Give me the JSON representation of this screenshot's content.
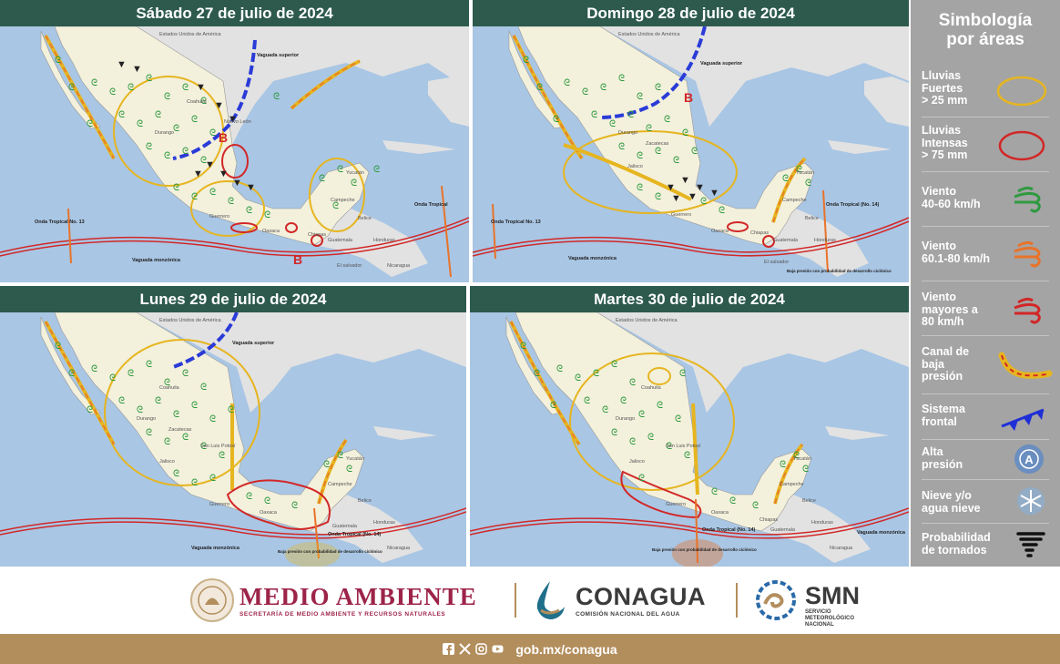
{
  "panels": [
    {
      "title": "Sábado 27 de julio de 2024",
      "labels": {
        "usa": "Estados Unidos de América",
        "vaguada_sup": "Vaguada superior",
        "coahuila": "Coahuila",
        "durango": "Durango",
        "nuevo_leon": "Nuevo León",
        "guerrero": "Guerrero",
        "oaxaca": "Oaxaca",
        "chiapas": "Chiapas",
        "yucatan": "Yucatán",
        "campeche": "Campeche",
        "belice": "Belice",
        "guatemala": "Guatemala",
        "honduras": "Honduras",
        "el_salvador": "El salvador",
        "nicaragua": "Nicaragua",
        "onda13": "Onda Tropical No. 13",
        "onda_trop": "Onda Tropical",
        "vaguada_mon": "Vaguada monzónica",
        "b1": "B",
        "b2": "B"
      }
    },
    {
      "title": "Domingo 28 de julio de 2024",
      "labels": {
        "usa": "Estados Unidos de América",
        "vaguada_sup": "Vaguada superior",
        "durango": "Durango",
        "zacatecas": "Zacatecas",
        "jalisco": "Jalisco",
        "guerrero": "Guerrero",
        "oaxaca": "Oaxaca",
        "chiapas": "Chiapas",
        "yucatan": "Yucatán",
        "campeche": "Campeche",
        "belice": "Belice",
        "guatemala": "Guatemala",
        "honduras": "Honduras",
        "el_salvador": "El salvador",
        "onda13": "Onda Tropical No. 13",
        "onda14": "Onda Tropical (No. 14)",
        "vaguada_mon": "Vaguada monzónica",
        "baja": "Baja presión con probabilidad de desarrollo ciclónico",
        "b1": "B"
      }
    },
    {
      "title": "Lunes 29 de julio de 2024",
      "labels": {
        "usa": "Estados Unidos de América",
        "vaguada_sup": "Vaguada superior",
        "coahuila": "Coahuila",
        "durango": "Durango",
        "zacatecas": "Zacatecas",
        "slp": "San Luis Potosí",
        "jalisco": "Jalisco",
        "guerrero": "Guerrero",
        "oaxaca": "Oaxaca",
        "yucatan": "Yucatán",
        "campeche": "Campeche",
        "belice": "Belice",
        "guatemala": "Guatemala",
        "honduras": "Honduras",
        "nicaragua": "Nicaragua",
        "onda14": "Onda Tropical (No. 14)",
        "vaguada_mon": "Vaguada monzónica",
        "baja": "Baja presión con probabilidad de desarrollo ciclónico"
      }
    },
    {
      "title": "Martes 30 de julio de 2024",
      "labels": {
        "usa": "Estados Unidos de América",
        "coahuila": "Coahuila",
        "durango": "Durango",
        "slp": "San Luis Potosí",
        "jalisco": "Jalisco",
        "guerrero": "Guerrero",
        "oaxaca": "Oaxaca",
        "chiapas": "Chiapas",
        "yucatan": "Yucatán",
        "campeche": "Campeche",
        "belice": "Belice",
        "guatemala": "Guatemala",
        "honduras": "Honduras",
        "nicaragua": "Nicaragua",
        "onda14": "Onda Tropical (No. 14)",
        "vaguada_mon": "Vaguada monzónica",
        "baja": "Baja presión con probabilidad de desarrollo ciclónico"
      }
    }
  ],
  "legend": {
    "title_line1": "Simbología",
    "title_line2": "por áreas",
    "items": [
      {
        "line1": "Lluvias",
        "line2": "Fuertes",
        "line3": "> 25 mm",
        "icon": "yellow-ellipse-icon"
      },
      {
        "line1": "Lluvias",
        "line2": "Intensas",
        "line3": "> 75 mm",
        "icon": "red-ellipse-icon"
      },
      {
        "line1": "Viento",
        "line2": "40-60 km/h",
        "line3": "",
        "icon": "green-wind-icon"
      },
      {
        "line1": "Viento",
        "line2": "60.1-80 km/h",
        "line3": "",
        "icon": "orange-wind-icon"
      },
      {
        "line1": "Viento",
        "line2": "mayores a",
        "line3": "80 km/h",
        "icon": "red-wind-icon"
      },
      {
        "line1": "Canal de",
        "line2": "baja",
        "line3": "presión",
        "icon": "low-pressure-channel-icon"
      },
      {
        "line1": "Sistema",
        "line2": "frontal",
        "line3": "",
        "icon": "cold-front-icon"
      },
      {
        "line1": "Alta",
        "line2": "presión",
        "line3": "",
        "icon": "high-pressure-icon"
      },
      {
        "line1": "Nieve y/o",
        "line2": "agua nieve",
        "line3": "",
        "icon": "snowflake-icon"
      },
      {
        "line1": "Probabilidad",
        "line2": "de tornados",
        "line3": "",
        "icon": "tornado-icon"
      }
    ]
  },
  "footer": {
    "medio_ambiente": "MEDIO AMBIENTE",
    "medio_ambiente_sub": "SECRETARÍA DE MEDIO AMBIENTE Y RECURSOS NATURALES",
    "conagua": "CONAGUA",
    "conagua_sub": "COMISIÓN NACIONAL DEL AGUA",
    "smn": "SMN",
    "smn_sub1": "SERVICIO",
    "smn_sub2": "METEOROLÓGICO",
    "smn_sub3": "NACIONAL",
    "url": "gob.mx/conagua"
  },
  "colors": {
    "header_green": "#2d5a4d",
    "sea": "#a9c6e4",
    "land_mx": "#f3f0dc",
    "land_other": "#e2e2e2",
    "legend_bg": "#a4a4a4",
    "footer_gold": "#b38e5d",
    "guinda": "#9d2449",
    "yellow": "#e6b51f",
    "red": "#d22727",
    "orange": "#e8732a",
    "green": "#2e9a3f",
    "blue": "#2a3bd8"
  }
}
